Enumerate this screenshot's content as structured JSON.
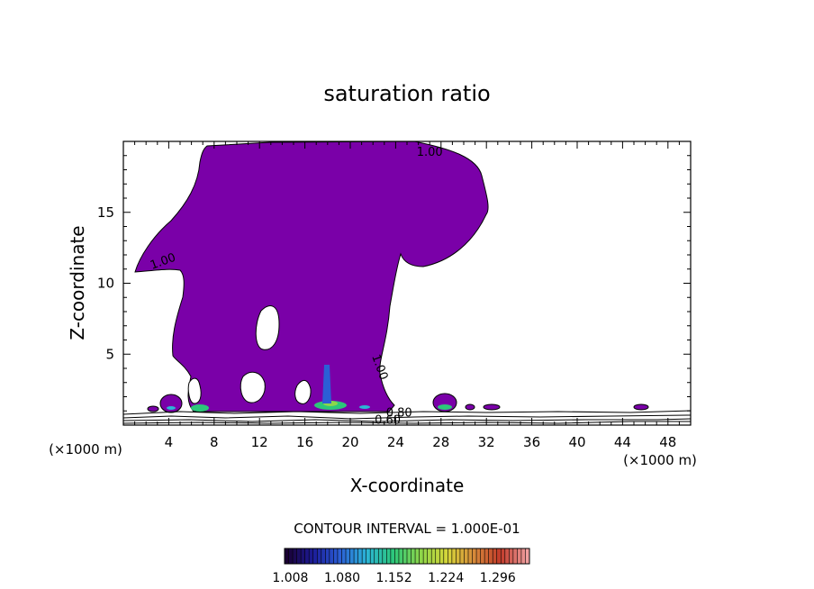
{
  "chart_data": {
    "type": "contour",
    "title": "saturation ratio",
    "xlabel": "X-coordinate",
    "ylabel": "Z-coordinate",
    "x_unit": "(×1000 m)",
    "z_unit": "(×1000 m)",
    "xlim": [
      0,
      50
    ],
    "ylim": [
      0,
      20
    ],
    "xticks": [
      4,
      8,
      12,
      16,
      20,
      24,
      28,
      32,
      36,
      40,
      44,
      48
    ],
    "yticks": [
      5,
      10,
      15
    ],
    "contour_labels": [
      {
        "text": "1.00",
        "x": 27.0,
        "z": 19.0
      },
      {
        "text": "1.00",
        "x": 3.6,
        "z": 11.3
      },
      {
        "text": "1.00",
        "x": 22.3,
        "z": 4.0
      },
      {
        "text": "0.80",
        "x": 24.3,
        "z": 0.6
      },
      {
        "text": "0.60",
        "x": 23.3,
        "z": 0.1
      }
    ],
    "fill_color": "#7a00a8",
    "contour_interval_text": "CONTOUR INTERVAL = 1.000E-01",
    "colorbar": {
      "labels": [
        "1.008",
        "1.080",
        "1.152",
        "1.224",
        "1.296"
      ],
      "min": 1.0,
      "max": 1.34,
      "colors": [
        "#1a0033",
        "#1c1c9a",
        "#2b5fd6",
        "#2bb5d6",
        "#2cc77a",
        "#8dd64a",
        "#d6d63a",
        "#d68a3a",
        "#c23a2a",
        "#f0a0a0"
      ]
    }
  }
}
